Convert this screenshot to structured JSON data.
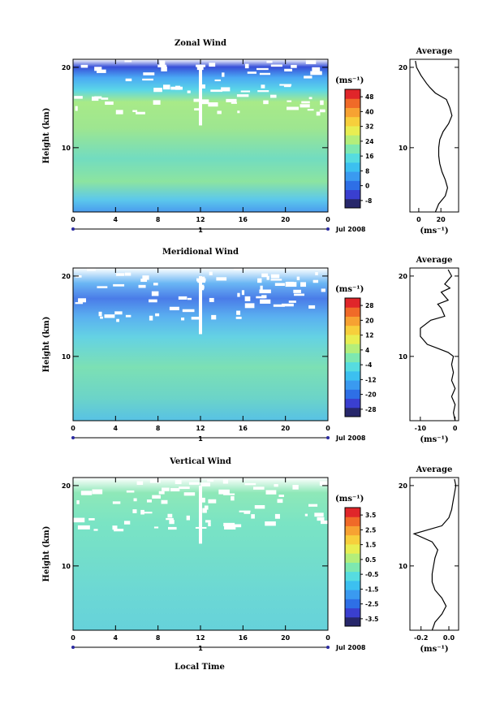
{
  "figure": {
    "xlabel": "Local Time",
    "date_label": "Jul 2008",
    "day_label": "1"
  },
  "chart_data": [
    {
      "type": "heatmap",
      "title": "Zonal Wind",
      "xlabel": "Local Time",
      "ylabel": "Height (km)",
      "x_ticks": [
        "0",
        "4",
        "8",
        "12",
        "16",
        "20",
        "0"
      ],
      "y_ticks": [
        "10",
        "20"
      ],
      "xlim": [
        0,
        24
      ],
      "ylim": [
        2,
        21
      ],
      "colorbar": {
        "unit": "(ms⁻¹)",
        "ticks": [
          "48",
          "40",
          "32",
          "24",
          "16",
          "8",
          "0",
          "-8"
        ],
        "range": [
          -12,
          52
        ]
      },
      "profile": {
        "title": "Average",
        "x_ticks": [
          "0",
          "20"
        ],
        "xlim": [
          -8,
          36
        ],
        "y_ticks": [
          "10",
          "20"
        ],
        "xlabel": "(ms⁻¹)",
        "points": [
          [
            15,
            2
          ],
          [
            18,
            3
          ],
          [
            24,
            4
          ],
          [
            26,
            5
          ],
          [
            24,
            6
          ],
          [
            21,
            7
          ],
          [
            19,
            8
          ],
          [
            18,
            9
          ],
          [
            18,
            10
          ],
          [
            19,
            11
          ],
          [
            22,
            12
          ],
          [
            27,
            13
          ],
          [
            30,
            14
          ],
          [
            28,
            15
          ],
          [
            25,
            16
          ],
          [
            15,
            16.8
          ],
          [
            10,
            17.5
          ],
          [
            7,
            18
          ],
          [
            2,
            19
          ],
          [
            -2,
            20
          ],
          [
            -3,
            20.8
          ]
        ]
      }
    },
    {
      "type": "heatmap",
      "title": "Meridional Wind",
      "xlabel": "Local Time",
      "ylabel": "Height (km)",
      "x_ticks": [
        "0",
        "4",
        "8",
        "12",
        "16",
        "20",
        "0"
      ],
      "y_ticks": [
        "10",
        "20"
      ],
      "xlim": [
        0,
        24
      ],
      "ylim": [
        2,
        21
      ],
      "colorbar": {
        "unit": "(ms⁻¹)",
        "ticks": [
          "28",
          "20",
          "12",
          "4",
          "-4",
          "-12",
          "-20",
          "-28"
        ],
        "range": [
          -32,
          32
        ]
      },
      "profile": {
        "title": "Average",
        "x_ticks": [
          "-10",
          "0"
        ],
        "xlim": [
          -13,
          1
        ],
        "y_ticks": [
          "10",
          "20"
        ],
        "xlabel": "(ms⁻¹)",
        "points": [
          [
            0,
            2
          ],
          [
            -0.5,
            3
          ],
          [
            0,
            4
          ],
          [
            -1,
            5
          ],
          [
            0,
            6
          ],
          [
            -1,
            7
          ],
          [
            -0.5,
            8
          ],
          [
            -1,
            9
          ],
          [
            -0.5,
            10
          ],
          [
            -2,
            10.5
          ],
          [
            -5,
            11
          ],
          [
            -8,
            11.5
          ],
          [
            -10,
            12.5
          ],
          [
            -10,
            13.5
          ],
          [
            -7,
            14.5
          ],
          [
            -3,
            15
          ],
          [
            -4,
            16
          ],
          [
            -5,
            16.5
          ],
          [
            -2,
            17
          ],
          [
            -4,
            18
          ],
          [
            -1.5,
            18.5
          ],
          [
            -3,
            19
          ],
          [
            -1,
            20
          ],
          [
            -2,
            20.8
          ]
        ]
      }
    },
    {
      "type": "heatmap",
      "title": "Vertical Wind",
      "xlabel": "Local Time",
      "ylabel": "Height (km)",
      "x_ticks": [
        "0",
        "4",
        "8",
        "12",
        "16",
        "20",
        "0"
      ],
      "y_ticks": [
        "10",
        "20"
      ],
      "xlim": [
        0,
        24
      ],
      "ylim": [
        2,
        21
      ],
      "colorbar": {
        "unit": "(ms⁻¹)",
        "ticks": [
          "3.5",
          "2.5",
          "1.5",
          "0.5",
          "-0.5",
          "-1.5",
          "-2.5",
          "-3.5"
        ],
        "range": [
          -4,
          4
        ]
      },
      "profile": {
        "title": "Average",
        "x_ticks": [
          "-0.2",
          "0.0"
        ],
        "xlim": [
          -0.28,
          0.07
        ],
        "y_ticks": [
          "10",
          "20"
        ],
        "xlabel": "(ms⁻¹)",
        "points": [
          [
            -0.12,
            2
          ],
          [
            -0.1,
            3
          ],
          [
            -0.05,
            4
          ],
          [
            -0.02,
            5
          ],
          [
            -0.05,
            6
          ],
          [
            -0.1,
            7
          ],
          [
            -0.12,
            8
          ],
          [
            -0.12,
            9
          ],
          [
            -0.11,
            10
          ],
          [
            -0.1,
            11
          ],
          [
            -0.08,
            12
          ],
          [
            -0.12,
            13
          ],
          [
            -0.25,
            14
          ],
          [
            -0.05,
            15
          ],
          [
            0.0,
            16
          ],
          [
            0.02,
            17
          ],
          [
            0.03,
            18
          ],
          [
            0.04,
            19
          ],
          [
            0.05,
            20
          ],
          [
            0.04,
            20.8
          ]
        ]
      }
    }
  ]
}
